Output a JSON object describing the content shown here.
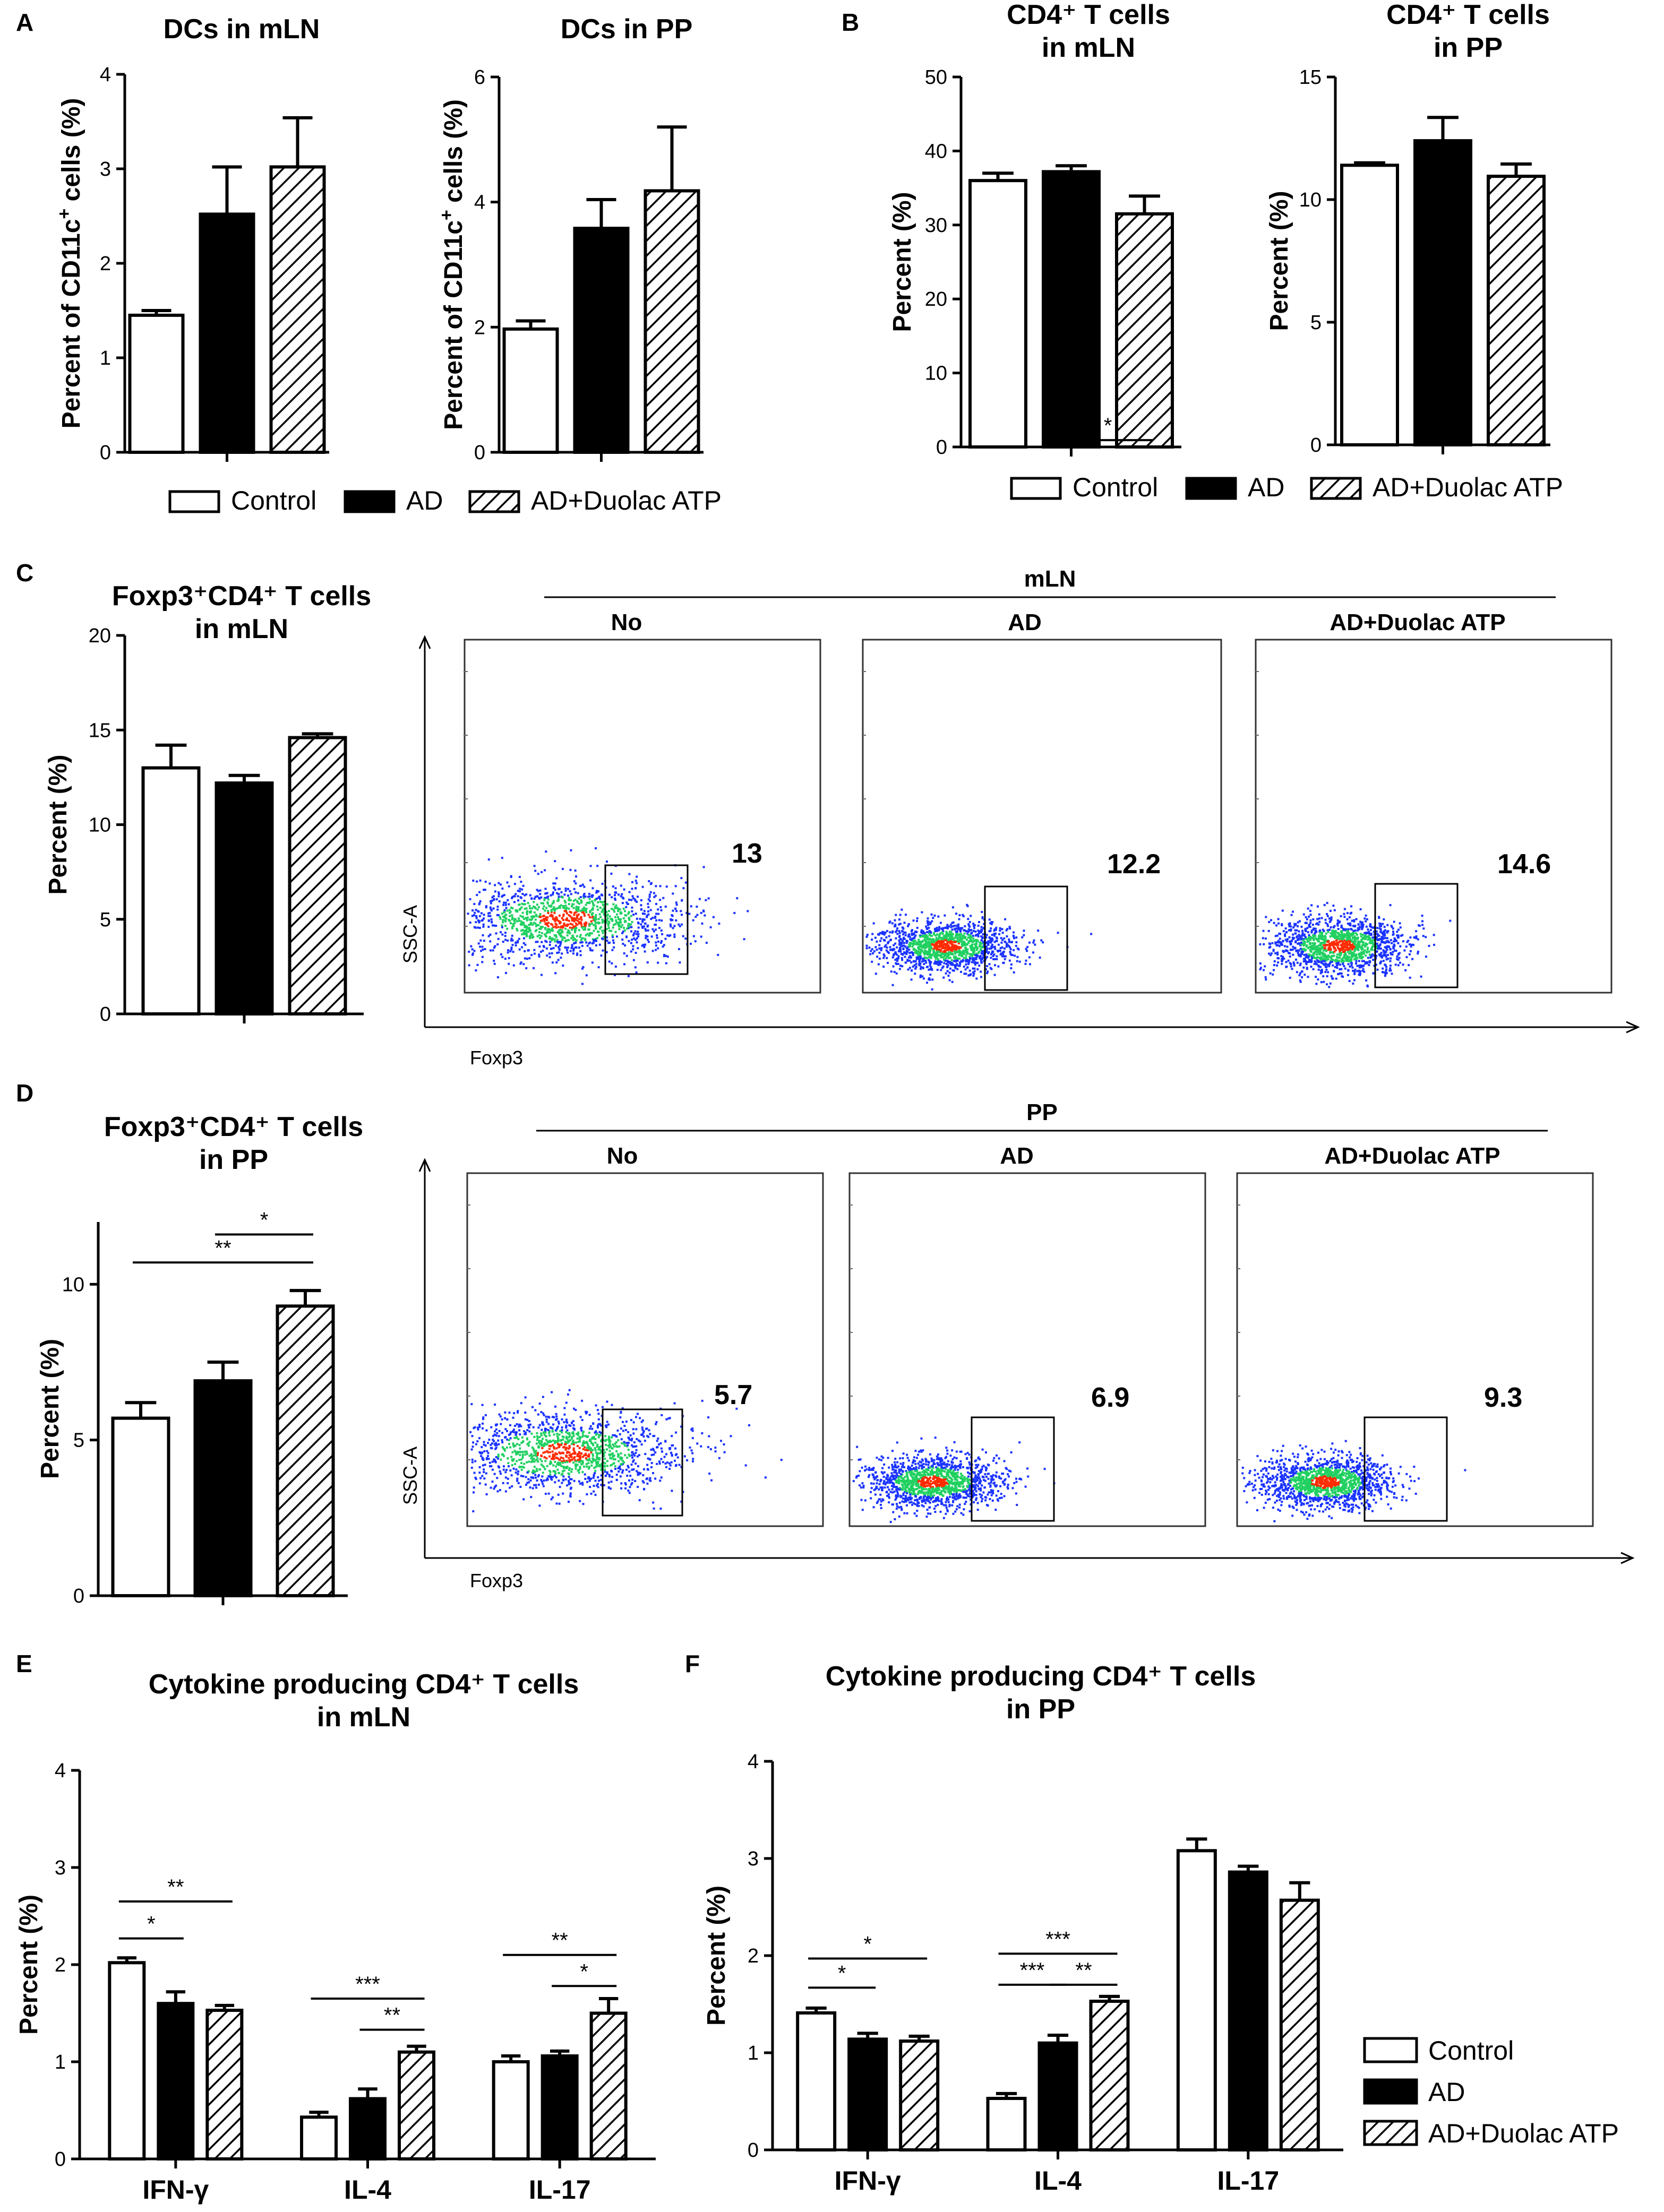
{
  "colors": {
    "control": "#ffffff",
    "ad": "#000000",
    "duolac_hatch": "#000000",
    "density_low": "#1a33ff",
    "density_mid": "#20d060",
    "density_high": "#ff2a00"
  },
  "legend_labels": {
    "control": "Control",
    "ad": "AD",
    "duolac": "AD+Duolac ATP"
  },
  "chart_data": [
    {
      "id": "A1",
      "panel_letter": "A",
      "type": "bar",
      "title_lines": [
        "DCs in mLN"
      ],
      "ylabel_parts": [
        {
          "t": "Percent of CD11c"
        },
        {
          "t": "+",
          "sup": true
        },
        {
          "t": " cells (%)"
        }
      ],
      "ylim": [
        0,
        4
      ],
      "yticks": [
        0,
        1,
        2,
        3,
        4
      ],
      "groups": [
        ""
      ],
      "series": [
        {
          "name": "Control",
          "values": [
            1.45
          ],
          "errors": [
            0.05
          ]
        },
        {
          "name": "AD",
          "values": [
            2.52
          ],
          "errors": [
            0.5
          ]
        },
        {
          "name": "AD+Duolac ATP",
          "values": [
            3.02
          ],
          "errors": [
            0.52
          ]
        }
      ],
      "significance": []
    },
    {
      "id": "A2",
      "type": "bar",
      "title_lines": [
        "DCs in PP"
      ],
      "ylabel_parts": [
        {
          "t": "Percent of CD11c"
        },
        {
          "t": "+",
          "sup": true
        },
        {
          "t": " cells (%)"
        }
      ],
      "ylim": [
        0,
        6
      ],
      "yticks": [
        0,
        2,
        4,
        6
      ],
      "groups": [
        ""
      ],
      "series": [
        {
          "name": "Control",
          "values": [
            1.97
          ],
          "errors": [
            0.13
          ]
        },
        {
          "name": "AD",
          "values": [
            3.58
          ],
          "errors": [
            0.46
          ]
        },
        {
          "name": "AD+Duolac ATP",
          "values": [
            4.18
          ],
          "errors": [
            1.02
          ]
        }
      ],
      "significance": []
    },
    {
      "id": "B1",
      "panel_letter": "B",
      "type": "bar",
      "title_lines": [
        "CD4⁺ T cells",
        "in mLN"
      ],
      "ylabel_parts": [
        {
          "t": "Percent (%)"
        }
      ],
      "ylim": [
        0,
        50
      ],
      "yticks": [
        0,
        10,
        20,
        30,
        40,
        50
      ],
      "groups": [
        ""
      ],
      "series": [
        {
          "name": "Control",
          "values": [
            36.0
          ],
          "errors": [
            1.0
          ]
        },
        {
          "name": "AD",
          "values": [
            37.2
          ],
          "errors": [
            0.8
          ]
        },
        {
          "name": "AD+Duolac ATP",
          "values": [
            31.5
          ],
          "errors": [
            2.4
          ]
        }
      ],
      "significance": [
        {
          "from": [
            0,
            1
          ],
          "to": [
            0,
            2
          ],
          "level": 0.92,
          "label": "*"
        }
      ]
    },
    {
      "id": "B2",
      "type": "bar",
      "title_lines": [
        "CD4⁺ T cells",
        "in PP"
      ],
      "ylabel_parts": [
        {
          "t": "Percent (%)"
        }
      ],
      "ylim": [
        0,
        15
      ],
      "yticks": [
        0,
        5,
        10,
        15
      ],
      "groups": [
        ""
      ],
      "series": [
        {
          "name": "Control",
          "values": [
            11.4
          ],
          "errors": [
            0.1
          ]
        },
        {
          "name": "AD",
          "values": [
            12.4
          ],
          "errors": [
            0.95
          ]
        },
        {
          "name": "AD+Duolac ATP",
          "values": [
            10.95
          ],
          "errors": [
            0.5
          ]
        }
      ],
      "significance": []
    },
    {
      "id": "C",
      "panel_letter": "C",
      "type": "bar",
      "title_lines": [
        "Foxp3⁺CD4⁺ T cells",
        "in mLN"
      ],
      "ylabel_parts": [
        {
          "t": "Percent (%)"
        }
      ],
      "ylim": [
        0,
        20
      ],
      "yticks": [
        0,
        5,
        10,
        15,
        20
      ],
      "groups": [
        ""
      ],
      "series": [
        {
          "name": "Control",
          "values": [
            13.0
          ],
          "errors": [
            1.2
          ]
        },
        {
          "name": "AD",
          "values": [
            12.2
          ],
          "errors": [
            0.4
          ]
        },
        {
          "name": "AD+Duolac ATP",
          "values": [
            14.6
          ],
          "errors": [
            0.2
          ]
        }
      ],
      "significance": []
    },
    {
      "id": "D",
      "panel_letter": "D",
      "type": "bar",
      "title_lines": [
        "Foxp3⁺CD4⁺ T cells",
        "in PP"
      ],
      "ylabel_parts": [
        {
          "t": "Percent (%)"
        }
      ],
      "ylim": [
        0,
        12
      ],
      "yticks": [
        0,
        5,
        10
      ],
      "groups": [
        ""
      ],
      "series": [
        {
          "name": "Control",
          "values": [
            5.7
          ],
          "errors": [
            0.5
          ]
        },
        {
          "name": "AD",
          "values": [
            6.9
          ],
          "errors": [
            0.6
          ]
        },
        {
          "name": "AD+Duolac ATP",
          "values": [
            9.3
          ],
          "errors": [
            0.5
          ]
        }
      ],
      "significance": [
        {
          "from": [
            0,
            0
          ],
          "to": [
            0,
            2
          ],
          "level": 10.7,
          "label": "**"
        },
        {
          "from": [
            0,
            1
          ],
          "to": [
            0,
            2
          ],
          "level": 11.6,
          "label": "*"
        }
      ]
    },
    {
      "id": "E",
      "panel_letter": "E",
      "type": "bar",
      "title_lines": [
        "Cytokine producing CD4⁺ T cells",
        "in mLN"
      ],
      "ylabel_parts": [
        {
          "t": "Percent (%)"
        }
      ],
      "ylim": [
        0,
        4
      ],
      "yticks": [
        0,
        1,
        2,
        3,
        4
      ],
      "groups": [
        "IFN-γ",
        "IL-4",
        "IL-17"
      ],
      "series": [
        {
          "name": "Control",
          "values": [
            2.02,
            0.43,
            1.0
          ],
          "errors": [
            0.05,
            0.05,
            0.06
          ]
        },
        {
          "name": "AD",
          "values": [
            1.6,
            0.62,
            1.06
          ],
          "errors": [
            0.12,
            0.1,
            0.05
          ]
        },
        {
          "name": "AD+Duolac ATP",
          "values": [
            1.53,
            1.1,
            1.5
          ],
          "errors": [
            0.05,
            0.06,
            0.15
          ]
        }
      ],
      "significance": [
        {
          "from": [
            0,
            0
          ],
          "to": [
            0,
            1
          ],
          "level": 2.27,
          "label": "*"
        },
        {
          "from": [
            0,
            0
          ],
          "to": [
            0,
            2
          ],
          "level": 2.65,
          "label": "**"
        },
        {
          "from": [
            1,
            0
          ],
          "to": [
            1,
            2
          ],
          "level": 1.65,
          "label": "***"
        },
        {
          "from": [
            1,
            1
          ],
          "to": [
            1,
            2
          ],
          "level": 1.33,
          "label": "**"
        },
        {
          "from": [
            2,
            0
          ],
          "to": [
            2,
            2
          ],
          "level": 2.1,
          "label": "**"
        },
        {
          "from": [
            2,
            1
          ],
          "to": [
            2,
            2
          ],
          "level": 1.78,
          "label": "*"
        }
      ]
    },
    {
      "id": "F",
      "panel_letter": "F",
      "type": "bar",
      "title_lines": [
        "Cytokine producing CD4⁺ T cells",
        "in PP"
      ],
      "ylabel_parts": [
        {
          "t": "Percent (%)"
        }
      ],
      "ylim": [
        0,
        4
      ],
      "yticks": [
        0,
        1,
        2,
        3,
        4
      ],
      "groups": [
        "IFN-γ",
        "IL-4",
        "IL-17"
      ],
      "series": [
        {
          "name": "Control",
          "values": [
            1.41,
            0.53,
            3.08
          ],
          "errors": [
            0.05,
            0.05,
            0.12
          ]
        },
        {
          "name": "AD",
          "values": [
            1.14,
            1.1,
            2.86
          ],
          "errors": [
            0.06,
            0.08,
            0.06
          ]
        },
        {
          "name": "AD+Duolac ATP",
          "values": [
            1.12,
            1.53,
            2.57
          ],
          "errors": [
            0.05,
            0.05,
            0.18
          ]
        }
      ],
      "significance": [
        {
          "from": [
            0,
            0
          ],
          "to": [
            0,
            1
          ],
          "level": 1.67,
          "label": "*"
        },
        {
          "from": [
            0,
            0
          ],
          "to": [
            0,
            2
          ],
          "level": 1.97,
          "label": "*"
        },
        {
          "from": [
            1,
            0
          ],
          "to": [
            1,
            2
          ],
          "level": 2.02,
          "label": "***"
        },
        {
          "from": [
            1,
            0
          ],
          "to": [
            1,
            1
          ],
          "level": 1.7,
          "label": "***"
        },
        {
          "from": [
            1,
            1
          ],
          "to": [
            1,
            2
          ],
          "level": 1.7,
          "label": "**"
        }
      ]
    }
  ],
  "flow_data": [
    {
      "id": "C",
      "tissue": "mLN",
      "y_axis_label": "SSC-A",
      "x_axis_label": "Foxp3",
      "plots": [
        {
          "label": "No",
          "gate_percent": "13",
          "spread": 1.0
        },
        {
          "label": "AD",
          "gate_percent": "12.2",
          "spread": 0.75
        },
        {
          "label": "AD+Duolac ATP",
          "gate_percent": "14.6",
          "spread": 0.75
        }
      ]
    },
    {
      "id": "D",
      "tissue": "PP",
      "y_axis_label": "SSC-A",
      "x_axis_label": "Foxp3",
      "plots": [
        {
          "label": "No",
          "gate_percent": "5.7",
          "spread": 1.0
        },
        {
          "label": "AD",
          "gate_percent": "6.9",
          "spread": 0.75
        },
        {
          "label": "AD+Duolac ATP",
          "gate_percent": "9.3",
          "spread": 0.7
        }
      ]
    }
  ]
}
